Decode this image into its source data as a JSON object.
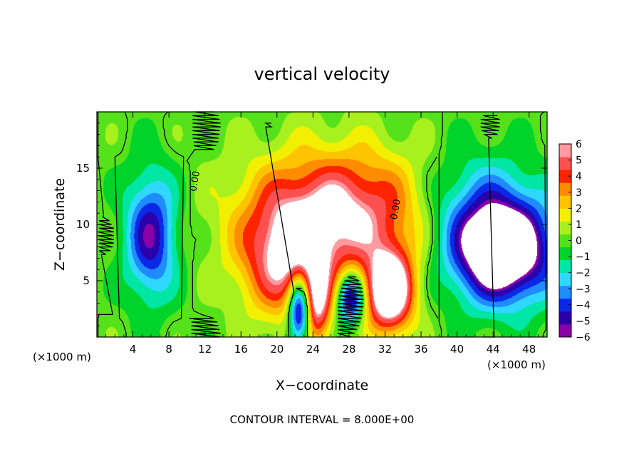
{
  "chart_data": {
    "type": "heatmap",
    "title": "vertical velocity",
    "xlabel": "X−coordinate",
    "ylabel": "Z−coordinate",
    "x_unit_left": "(×1000 m)",
    "x_unit_right": "(×1000 m)",
    "footer": "CONTOUR INTERVAL = 8.000E+00",
    "xlim": [
      0,
      50
    ],
    "ylim": [
      0,
      20
    ],
    "x_ticks": [
      4,
      8,
      12,
      16,
      20,
      24,
      28,
      32,
      36,
      40,
      44,
      48
    ],
    "y_ticks": [
      5,
      10,
      15
    ],
    "contour_labels": [
      {
        "text": "0.00",
        "x": 11.2,
        "z": 13.8
      },
      {
        "text": "0.00",
        "x": 33.5,
        "z": 11.3
      }
    ],
    "colorbar": {
      "min": -6,
      "max": 6,
      "tick_labels": [
        "6",
        "5",
        "4",
        "3",
        "2",
        "1",
        "0",
        "−1",
        "−2",
        "−3",
        "−4",
        "−5",
        "−6"
      ]
    },
    "features": [
      {
        "kind": "updraft",
        "x": 27,
        "z": 11,
        "sx": 10,
        "sz": 5.5,
        "amp": 6.5
      },
      {
        "kind": "updraft",
        "x": 21,
        "z": 6.5,
        "sx": 5,
        "sz": 5,
        "amp": 5
      },
      {
        "kind": "updraft",
        "x": 32.5,
        "z": 4,
        "sx": 2.6,
        "sz": 3.5,
        "amp": 9
      },
      {
        "kind": "updraft",
        "x": 24.5,
        "z": 3,
        "sx": 1.5,
        "sz": 3.5,
        "amp": 5
      },
      {
        "kind": "downdraft",
        "x": 22.5,
        "z": 2.5,
        "sx": 1.2,
        "sz": 3,
        "amp": -8
      },
      {
        "kind": "downdraft",
        "x": 28.2,
        "z": 3.5,
        "sx": 1.5,
        "sz": 2.2,
        "amp": -7
      },
      {
        "kind": "downdraft",
        "x": 6,
        "z": 9,
        "sx": 2.8,
        "sz": 5.5,
        "amp": -5.5
      },
      {
        "kind": "downdraft",
        "x": 45,
        "z": 7.5,
        "sx": 5.5,
        "sz": 4.5,
        "amp": -9
      },
      {
        "kind": "downdraft",
        "x": 42,
        "z": 11.5,
        "sx": 7,
        "sz": 5,
        "amp": -3
      }
    ]
  }
}
